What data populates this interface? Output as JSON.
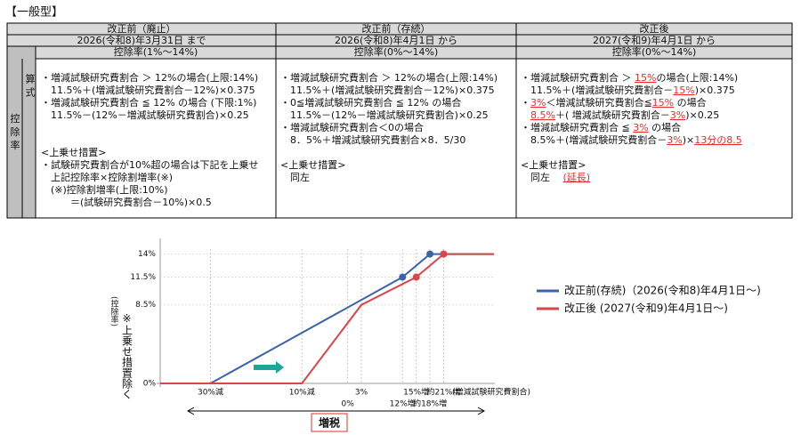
{
  "title": "【一般型】",
  "table": {
    "columns": [
      {
        "header": "改正前（廃止）",
        "date": "2026(令和8)年3月31日 まで",
        "rate": "控除率(1%～14%)",
        "lines": [
          [
            {
              "text": "・増減試験研究費割合 ＞ 12%の場合(上限:14%)"
            }
          ],
          [
            {
              "text": "　11.5%＋(増減試験研究費割合－12%)×0.375"
            }
          ],
          [
            {
              "text": "・増減試験研究費割合 ≦ 12% の場合 (下限:1%)"
            }
          ],
          [
            {
              "text": "　11.5%－(12%－増減試験研究費割合)×0.25"
            }
          ]
        ],
        "measure_title": "<上乗せ措置>",
        "measure_lines": [
          [
            {
              "text": "・試験研究費割合が10%超の場合は下記を上乗せ"
            }
          ],
          [
            {
              "text": "　上記控除率×控除割増率(※)"
            }
          ],
          [
            {
              "text": "　(※)控除割増率(上限:10%)"
            }
          ],
          [
            {
              "text": "　　　＝(試験研究費割合－10%)×0.5"
            }
          ]
        ]
      },
      {
        "header": "改正前（存続）",
        "date": "2026(令和8)年4月1日 から",
        "rate": "控除率(0%～14%)",
        "lines": [
          [
            {
              "text": "・増減試験研究費割合 ＞ 12%の場合(上限:14%)"
            }
          ],
          [
            {
              "text": "　11.5%＋(増減試験研究費割合－12%)×0.375"
            }
          ],
          [
            {
              "text": "・0≦増減試験研究費割合 ≦ 12% の場合"
            }
          ],
          [
            {
              "text": "　11.5%－(12%－増減試験研究費割合)×0.25"
            }
          ],
          [
            {
              "text": "・増減試験研究費割合＜0の場合"
            }
          ],
          [
            {
              "text": "　8．5%＋増減試験研究費割合×8．5/30"
            }
          ]
        ],
        "measure_title": "<上乗せ措置>",
        "measure_lines": [
          [
            {
              "text": "　同左"
            }
          ]
        ]
      },
      {
        "header": "改正後",
        "date": "2027(令和9)年4月1日 から",
        "rate": "控除率(0%～14%)",
        "lines": [
          [
            {
              "text": "・増減試験研究費割合 ＞ "
            },
            {
              "text": "15%",
              "highlight": true
            },
            {
              "text": "の場合(上限:14%)"
            }
          ],
          [
            {
              "text": "　11.5%＋(増減試験研究費割合－"
            },
            {
              "text": "15%",
              "highlight": true
            },
            {
              "text": ")×0.375"
            }
          ],
          [
            {
              "text": "・"
            },
            {
              "text": "3%",
              "highlight": true
            },
            {
              "text": "＜増減試験研究費割合≦"
            },
            {
              "text": "15%",
              "highlight": true
            },
            {
              "text": " の場合"
            }
          ],
          [
            {
              "text": "　"
            },
            {
              "text": "8.5%",
              "highlight": true
            },
            {
              "text": "＋( 増減試験研究費割合－"
            },
            {
              "text": "3%",
              "highlight": true
            },
            {
              "text": ")×0.25"
            }
          ],
          [
            {
              "text": "・増減試験研究費割合 ≦ "
            },
            {
              "text": "3%",
              "highlight": true
            },
            {
              "text": " の場合"
            }
          ],
          [
            {
              "text": "　8.5%＋(増減試験研究費割合－"
            },
            {
              "text": "3%",
              "highlight": true
            },
            {
              "text": ")×"
            },
            {
              "text": "13分の8.5",
              "highlight": true
            }
          ]
        ],
        "measure_title": "<上乗せ措置>",
        "measure_lines": [
          [
            {
              "text": "　同左　 "
            },
            {
              "text": "(延長)",
              "highlight": true
            }
          ]
        ]
      }
    ],
    "row_label": "控除率",
    "formula_label": "算式"
  },
  "chart_data": {
    "type": "line",
    "y_label": "(控除率)",
    "note": "※上乗せ措置除く",
    "x_label": "(増減試験研究費割合)",
    "xlim": [
      -41,
      32
    ],
    "ylim": [
      0,
      15.5
    ],
    "xticks": [
      {
        "value": -30,
        "label": "30%減"
      },
      {
        "value": -10,
        "label": "10%減"
      },
      {
        "value": 0,
        "label": "0%"
      },
      {
        "value": 3,
        "label": "3%"
      },
      {
        "value": 12,
        "label": "12%増"
      },
      {
        "value": 15,
        "label": "15%増"
      },
      {
        "value": 18,
        "label": "約18%増"
      },
      {
        "value": 21,
        "label": "約21%増"
      }
    ],
    "yticks": [
      {
        "value": 0,
        "label": "0%"
      },
      {
        "value": 8.5,
        "label": "8.5%"
      },
      {
        "value": 11.5,
        "label": "11.5%"
      },
      {
        "value": 14,
        "label": "14%"
      }
    ],
    "series": [
      {
        "name": "改正前(存続)（2026(令和8)年4月1日～)",
        "color": "#3b64a8",
        "x": [
          -41,
          -30,
          12,
          18,
          32
        ],
        "y": [
          0,
          0,
          11.5,
          14,
          14
        ],
        "markers": [
          2,
          3
        ]
      },
      {
        "name": "改正後 (2027(令和9)年4月1日～)",
        "color": "#d9454a",
        "x": [
          -41,
          -10,
          3,
          15,
          21,
          32
        ],
        "y": [
          0,
          0,
          8.5,
          11.5,
          14,
          14
        ],
        "markers": [
          3,
          4
        ]
      }
    ],
    "annotation": "増税",
    "highlight_color": "#e03030"
  }
}
